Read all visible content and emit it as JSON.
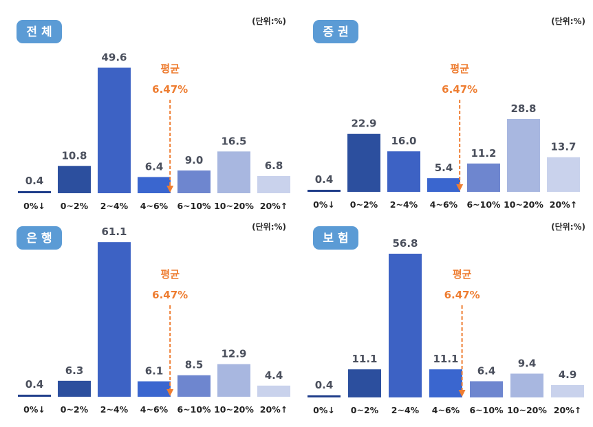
{
  "unit_label": "(단위:%)",
  "chart_data": [
    {
      "type": "bar",
      "title": "전 체",
      "categories": [
        "0%↓",
        "0~2%",
        "2~4%",
        "4~6%",
        "6~10%",
        "10~20%",
        "20%↑"
      ],
      "values": [
        0.4,
        10.8,
        49.6,
        6.4,
        9.0,
        16.5,
        6.8
      ],
      "value_labels": [
        "0.4",
        "10.8",
        "49.6",
        "6.4",
        "9.0",
        "16.5",
        "6.8"
      ],
      "average": {
        "label": "평균",
        "value_label": "6.47%"
      }
    },
    {
      "type": "bar",
      "title": "증 권",
      "categories": [
        "0%↓",
        "0~2%",
        "2~4%",
        "4~6%",
        "6~10%",
        "10~20%",
        "20%↑"
      ],
      "values": [
        0.4,
        22.9,
        16.0,
        5.4,
        11.2,
        28.8,
        13.7
      ],
      "value_labels": [
        "0.4",
        "22.9",
        "16.0",
        "5.4",
        "11.2",
        "28.8",
        "13.7"
      ],
      "average": {
        "label": "평균",
        "value_label": "6.47%"
      }
    },
    {
      "type": "bar",
      "title": "은 행",
      "categories": [
        "0%↓",
        "0~2%",
        "2~4%",
        "4~6%",
        "6~10%",
        "10~20%",
        "20%↑"
      ],
      "values": [
        0.4,
        6.3,
        61.1,
        6.1,
        8.5,
        12.9,
        4.4
      ],
      "value_labels": [
        "0.4",
        "6.3",
        "61.1",
        "6.1",
        "8.5",
        "12.9",
        "4.4"
      ],
      "average": {
        "label": "평균",
        "value_label": "6.47%"
      }
    },
    {
      "type": "bar",
      "title": "보 험",
      "categories": [
        "0%↓",
        "0~2%",
        "2~4%",
        "4~6%",
        "6~10%",
        "10~20%",
        "20%↑"
      ],
      "values": [
        0.4,
        11.1,
        56.8,
        11.1,
        6.4,
        9.4,
        4.9
      ],
      "value_labels": [
        "0.4",
        "11.1",
        "56.8",
        "11.1",
        "6.4",
        "9.4",
        "4.9"
      ],
      "average": {
        "label": "평균",
        "value_label": "6.47%"
      }
    }
  ]
}
